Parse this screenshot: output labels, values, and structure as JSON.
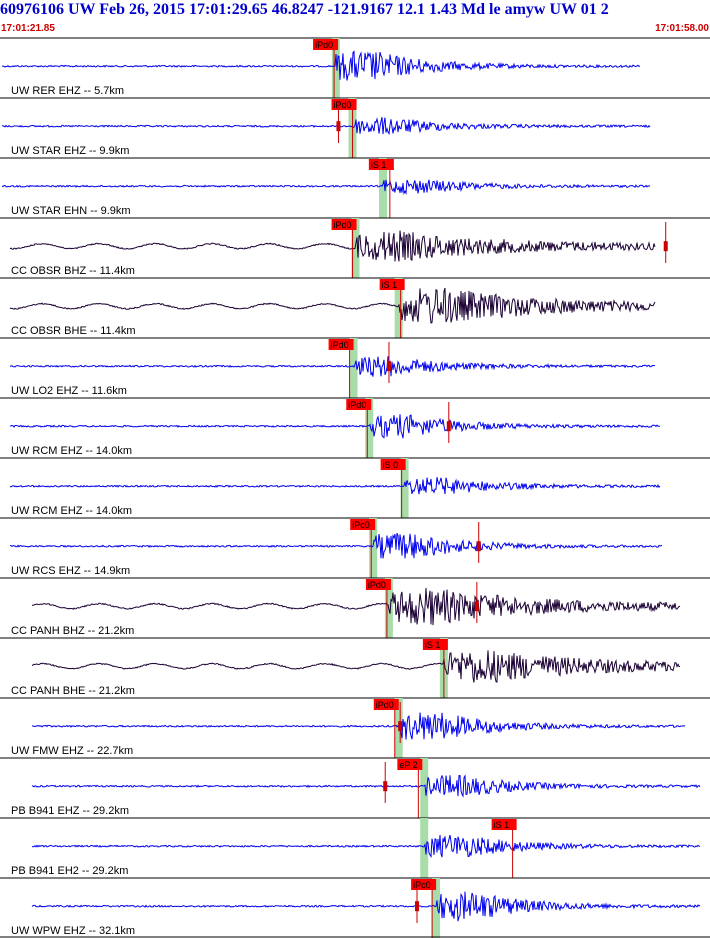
{
  "header": {
    "title": "60976106 UW Feb 26, 2015 17:01:29.65   46.8247 -121.9167 12.1 1.43 Md le amyw UW 01   2",
    "start_time": "17:01:21.85",
    "end_time": "17:01:58.00"
  },
  "colors": {
    "short_period": "#0000ee",
    "broadband": "#1a0033",
    "pick_box": "#ff0000",
    "pick_window": "#a8dca8",
    "coda_marker": "#cc0000",
    "label": "#000000"
  },
  "chart_data": {
    "type": "seismogram",
    "x_unit": "time",
    "xlim": [
      "17:01:21.85",
      "17:01:58.00"
    ],
    "traces": [
      {
        "label": "UW RER EHZ -- 5.7km",
        "color": "short_period",
        "pick": "iPd0",
        "pick_time": 17.01,
        "onset": 17.1,
        "end": 640,
        "amp": 1.0,
        "coda_time": null
      },
      {
        "label": "UW STAR EHZ -- 9.9km",
        "color": "short_period",
        "pick": "iPd0",
        "pick_time": 17.95,
        "onset": 17.95,
        "end": 650,
        "amp": 0.55,
        "coda_time": 18.1
      },
      {
        "label": "UW STAR EHN -- 9.9km",
        "color": "short_period",
        "pick": "iS 1",
        "pick_time": 19.85,
        "onset": 19.5,
        "end": 650,
        "amp": 0.45,
        "coda_time": null
      },
      {
        "label": "CC OBSR BHZ -- 11.4km",
        "color": "broadband",
        "pick": "iPd0",
        "pick_time": 17.95,
        "onset": 18.1,
        "end": 655,
        "amp": 0.7,
        "coda_time": 35.6
      },
      {
        "label": "CC OBSR BHE -- 11.4km",
        "color": "broadband",
        "pick": "iS 1",
        "pick_time": 20.4,
        "onset": 20.3,
        "end": 655,
        "amp": 0.9,
        "coda_time": null
      },
      {
        "label": "UW LO2 EHZ -- 11.6km",
        "color": "short_period",
        "pick": "iPd0",
        "pick_time": 17.8,
        "onset": 18.0,
        "end": 655,
        "amp": 0.65,
        "coda_time": 20.8
      },
      {
        "label": "UW RCM EHZ -- 14.0km",
        "color": "short_period",
        "pick": "iPd0",
        "pick_time": 18.7,
        "onset": 18.8,
        "end": 660,
        "amp": 0.75,
        "coda_time": 24.0
      },
      {
        "label": "UW RCM EHZ -- 14.0km",
        "color": "short_period",
        "pick": "iS 0",
        "pick_time": 20.45,
        "onset": 20.6,
        "end": 660,
        "amp": 0.55,
        "coda_time": null
      },
      {
        "label": "UW RCS EHZ -- 14.9km",
        "color": "short_period",
        "pick": "iPc0",
        "pick_time": 18.9,
        "onset": 19.0,
        "end": 662,
        "amp": 0.85,
        "coda_time": 25.6
      },
      {
        "label": "CC PANH BHZ -- 21.2km",
        "color": "broadband",
        "pick": "iPd0",
        "pick_time": 19.7,
        "onset": 19.8,
        "end": 680,
        "amp": 0.9,
        "coda_time": 25.5
      },
      {
        "label": "CC PANH BHE -- 21.2km",
        "color": "broadband",
        "pick": "iS 1",
        "pick_time": 22.6,
        "onset": 22.6,
        "end": 680,
        "amp": 0.8,
        "coda_time": null
      },
      {
        "label": "UW FMW EHZ -- 22.7km",
        "color": "short_period",
        "pick": "iPd0",
        "pick_time": 20.1,
        "onset": 20.3,
        "end": 685,
        "amp": 0.95,
        "coda_time": 21.4
      },
      {
        "label": "PB B941 EHZ -- 29.2km",
        "color": "short_period",
        "pick": "eP 2",
        "pick_time": 21.3,
        "onset": 21.6,
        "end": 700,
        "amp": 0.7,
        "coda_time": 20.6
      },
      {
        "label": "PB B941 EH2 -- 29.2km",
        "color": "short_period",
        "pick": "iS 1",
        "pick_time": 26.1,
        "onset": 21.6,
        "end": 700,
        "amp": 0.75,
        "coda_time": null
      },
      {
        "label": "UW WPW EHZ -- 32.1km",
        "color": "short_period",
        "pick": "iPc0",
        "pick_time": 22.0,
        "onset": 22.2,
        "end": 700,
        "amp": 0.95,
        "coda_time": 22.3
      }
    ]
  }
}
